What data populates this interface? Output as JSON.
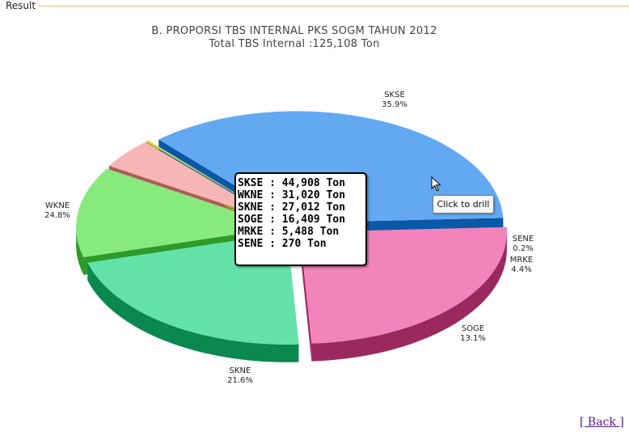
{
  "result_legend": "Result",
  "back_link": "[ Back ]",
  "drill_tooltip": "Click to drill",
  "chart_data": {
    "type": "pie",
    "title": "B. PROPORSI TBS INTERNAL PKS SOGM TAHUN 2012",
    "subtitle": "Total TBS Internal :125,108 Ton",
    "slices": [
      {
        "name": "SKSE",
        "value": 44908,
        "percent_label": "35.9%",
        "color": "#62a9f1",
        "side_color": "#0a58a8"
      },
      {
        "name": "SENE",
        "value": 270,
        "percent_label": "0.2%",
        "color": "#d6e04a",
        "side_color": "#9aa020"
      },
      {
        "name": "MRKE",
        "value": 5488,
        "percent_label": "4.4%",
        "color": "#f7b6b6",
        "side_color": "#b05a5a"
      },
      {
        "name": "SOGE",
        "value": 16409,
        "percent_label": "13.1%",
        "color": "#86ea7c",
        "side_color": "#2e9a2a"
      },
      {
        "name": "SKNE",
        "value": 27012,
        "percent_label": "21.6%",
        "color": "#62e2a8",
        "side_color": "#0a8850"
      },
      {
        "name": "WKNE",
        "value": 31020,
        "percent_label": "24.8%",
        "color": "#f283bb",
        "side_color": "#9a2a5e"
      }
    ]
  },
  "tooltip_lines": [
    "SKSE : 44,908 Ton",
    "WKNE : 31,020 Ton",
    "SKNE : 27,012 Ton",
    "SOGE : 16,409 Ton",
    "MRKE : 5,488 Ton",
    "SENE : 270 Ton"
  ]
}
